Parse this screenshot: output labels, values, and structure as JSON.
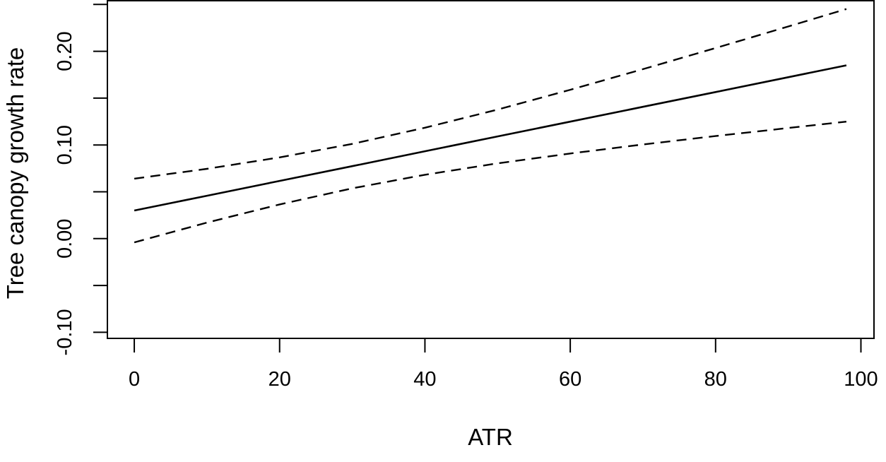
{
  "figure": {
    "background": "#ffffff",
    "foreground": "#000000"
  },
  "chart_data": {
    "type": "line",
    "title": "",
    "xlabel": "ATR",
    "ylabel": "Tree canopy growth rate",
    "grid": false,
    "legend": null,
    "xlim": [
      -3.7,
      101.8
    ],
    "ylim": [
      -0.1065,
      0.254
    ],
    "x_ticks": [
      {
        "value": 0,
        "label": "0"
      },
      {
        "value": 20,
        "label": "20"
      },
      {
        "value": 40,
        "label": "40"
      },
      {
        "value": 60,
        "label": "60"
      },
      {
        "value": 80,
        "label": "80"
      },
      {
        "value": 100,
        "label": "100"
      }
    ],
    "y_ticks": [
      {
        "value": -0.1,
        "label": "-0.10"
      },
      {
        "value": -0.05,
        "label": ""
      },
      {
        "value": 0.0,
        "label": "0.00"
      },
      {
        "value": 0.05,
        "label": ""
      },
      {
        "value": 0.1,
        "label": "0.10"
      },
      {
        "value": 0.15,
        "label": ""
      },
      {
        "value": 0.2,
        "label": "0.20"
      },
      {
        "value": 0.25,
        "label": ""
      }
    ],
    "x": [
      0,
      10,
      20,
      30,
      40,
      50,
      60,
      70,
      80,
      90,
      98
    ],
    "series": [
      {
        "name": "fitted-line",
        "style": "solid",
        "color": "#000000",
        "values": [
          0.03,
          0.0458,
          0.0616,
          0.0774,
          0.0933,
          0.1091,
          0.1249,
          0.1407,
          0.1565,
          0.1723,
          0.185
        ]
      },
      {
        "name": "upper-confidence-band",
        "style": "dashed",
        "color": "#000000",
        "values": [
          0.064,
          0.0745,
          0.0867,
          0.1011,
          0.1184,
          0.1378,
          0.1589,
          0.1809,
          0.2035,
          0.2265,
          0.2451
        ]
      },
      {
        "name": "lower-confidence-band",
        "style": "dashed",
        "color": "#000000",
        "values": [
          -0.004,
          0.0171,
          0.0365,
          0.0537,
          0.0682,
          0.0804,
          0.0909,
          0.1005,
          0.1095,
          0.1181,
          0.1249
        ]
      }
    ]
  }
}
